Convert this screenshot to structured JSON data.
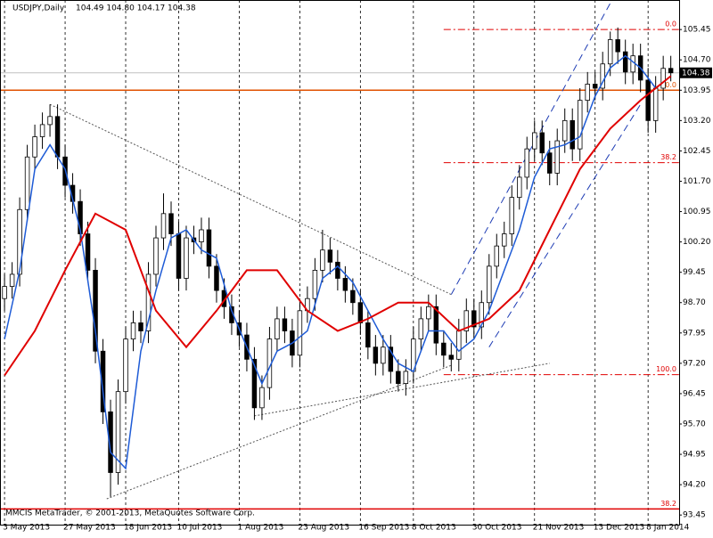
{
  "chart_data": {
    "type": "candlestick",
    "title": "USDJPY,Daily",
    "subtitle": "104.49 104.80 104.17 104.38",
    "footer": "MMCIS MetaTrader, © 2001-2013, MetaQuotes Software Corp.",
    "up_color": "#ffffff",
    "down_color": "#000000",
    "xlim": [
      -0.6,
      89.1
    ],
    "ylim": [
      93.19,
      106.18
    ],
    "yticks": [
      93.45,
      {
        "value": 94.2,
        "label": "94.20"
      },
      94.95,
      {
        "value": 95.7,
        "label": "95.70"
      },
      96.45,
      {
        "value": 97.2,
        "label": "97.20"
      },
      97.95,
      {
        "value": 98.7,
        "label": "98.70"
      },
      99.45,
      {
        "value": 100.2,
        "label": "100.20"
      },
      100.95,
      {
        "value": 101.7,
        "label": "101.70"
      },
      102.45,
      {
        "value": 103.2,
        "label": "103.20"
      },
      103.95,
      {
        "value": 104.7,
        "label": "104.70"
      },
      105.45
    ],
    "xticks": [
      {
        "value": 0,
        "label": "3 May 2013"
      },
      {
        "value": 8,
        "label": "27 May 2013"
      },
      {
        "value": 16,
        "label": "18 Jun 2013"
      },
      {
        "value": 23,
        "label": "10 Jul 2013"
      },
      {
        "value": 31,
        "label": "1 Aug 2013"
      },
      {
        "value": 39,
        "label": "23 Aug 2013"
      },
      {
        "value": 47,
        "label": "16 Sep 2013"
      },
      {
        "value": 54,
        "label": "8 Oct 2013"
      },
      {
        "value": 62,
        "label": "30 Oct 2013"
      },
      {
        "value": 70,
        "label": "21 Nov 2013"
      },
      {
        "value": 78,
        "label": "13 Dec 2013"
      },
      {
        "value": 85,
        "label": "8 Jan 2014"
      }
    ],
    "open": [
      98.8,
      99.1,
      99.4,
      101.0,
      102.3,
      102.8,
      103.1,
      103.3,
      102.3,
      101.6,
      101.2,
      100.4,
      99.5,
      97.5,
      96.0,
      94.5,
      96.5,
      97.8,
      98.2,
      98.0,
      99.4,
      100.3,
      100.9,
      100.4,
      99.3,
      100.3,
      100.2,
      100.5,
      99.6,
      99.0,
      98.6,
      98.2,
      97.9,
      97.3,
      96.1,
      96.6,
      97.8,
      98.3,
      98.0,
      97.4,
      98.5,
      98.8,
      99.5,
      100.0,
      99.7,
      99.3,
      99.0,
      98.7,
      98.2,
      97.6,
      97.2,
      97.6,
      97.0,
      96.7,
      97.0,
      97.8,
      98.3,
      98.6,
      97.7,
      97.4,
      97.3,
      98.0,
      98.5,
      98.1,
      98.7,
      99.6,
      100.1,
      100.4,
      101.3,
      101.8,
      102.5,
      102.9,
      102.4,
      101.9,
      102.7,
      103.2,
      102.5,
      103.7,
      104.1,
      104.0,
      104.6,
      105.2,
      104.9,
      104.4,
      104.8,
      104.2,
      103.2,
      104.0,
      104.49
    ],
    "high": [
      99.4,
      99.7,
      101.3,
      102.6,
      103.1,
      103.4,
      103.6,
      103.6,
      102.6,
      101.9,
      101.5,
      100.7,
      99.8,
      97.8,
      96.3,
      96.8,
      98.1,
      98.5,
      98.5,
      99.7,
      100.6,
      101.4,
      101.2,
      100.7,
      100.6,
      100.6,
      100.8,
      100.8,
      99.9,
      99.3,
      98.9,
      98.5,
      98.2,
      97.6,
      96.9,
      98.1,
      98.6,
      98.6,
      98.3,
      98.8,
      99.1,
      99.8,
      100.5,
      100.3,
      100.0,
      99.6,
      99.3,
      99.0,
      98.5,
      97.9,
      97.9,
      97.9,
      97.3,
      97.3,
      98.1,
      98.6,
      98.9,
      98.9,
      98.0,
      97.7,
      98.3,
      98.8,
      98.8,
      99.0,
      99.9,
      100.4,
      100.7,
      101.6,
      102.1,
      102.8,
      103.2,
      103.2,
      102.7,
      103.0,
      103.5,
      103.5,
      104.0,
      104.4,
      104.4,
      104.9,
      105.4,
      105.5,
      105.2,
      105.1,
      105.1,
      104.5,
      104.3,
      104.8,
      104.8
    ],
    "low": [
      98.5,
      98.8,
      99.1,
      100.7,
      102.0,
      102.5,
      102.8,
      102.0,
      101.3,
      100.9,
      100.1,
      99.2,
      97.2,
      95.7,
      93.9,
      94.2,
      96.2,
      97.5,
      97.7,
      97.7,
      99.1,
      100.0,
      100.1,
      99.0,
      99.0,
      99.9,
      99.9,
      99.3,
      98.7,
      98.3,
      97.9,
      97.6,
      97.0,
      95.8,
      95.8,
      96.3,
      97.5,
      97.7,
      97.1,
      97.1,
      98.2,
      98.5,
      99.2,
      99.4,
      99.0,
      98.7,
      98.4,
      97.9,
      97.3,
      96.9,
      96.9,
      96.7,
      96.5,
      96.4,
      96.7,
      97.5,
      98.0,
      97.4,
      97.1,
      97.0,
      97.0,
      97.7,
      97.8,
      97.8,
      98.4,
      99.3,
      99.8,
      100.1,
      101.0,
      101.5,
      102.2,
      102.1,
      101.6,
      101.6,
      102.4,
      102.2,
      102.2,
      103.4,
      103.7,
      103.7,
      104.3,
      104.6,
      104.1,
      104.1,
      103.9,
      102.9,
      102.9,
      103.7,
      104.17
    ],
    "close": [
      99.1,
      99.4,
      101.0,
      102.3,
      102.8,
      103.1,
      103.3,
      102.3,
      101.6,
      101.2,
      100.4,
      99.5,
      97.5,
      96.0,
      94.5,
      96.5,
      97.8,
      98.2,
      98.0,
      99.4,
      100.3,
      100.9,
      100.4,
      99.3,
      100.3,
      100.2,
      100.5,
      99.6,
      99.0,
      98.6,
      98.2,
      97.9,
      97.3,
      96.1,
      96.6,
      97.8,
      98.3,
      98.0,
      97.4,
      98.5,
      98.8,
      99.5,
      100.0,
      99.7,
      99.3,
      99.0,
      98.7,
      98.2,
      97.6,
      97.2,
      97.6,
      97.0,
      96.7,
      97.0,
      97.8,
      98.3,
      98.6,
      97.7,
      97.4,
      97.3,
      98.0,
      98.5,
      98.1,
      98.7,
      99.6,
      100.1,
      100.4,
      101.3,
      101.8,
      102.5,
      102.9,
      102.4,
      101.9,
      102.7,
      103.2,
      102.5,
      103.7,
      104.1,
      104.0,
      104.6,
      105.2,
      104.9,
      104.4,
      104.8,
      104.2,
      103.2,
      104.0,
      104.49,
      104.38
    ],
    "last_price": {
      "value": 104.38,
      "label": "104.38"
    },
    "lines": [
      {
        "color": "#1e5bd6",
        "width": 1.5,
        "x": [
          0,
          2,
          4,
          6,
          8,
          10,
          12,
          14,
          16,
          18,
          20,
          22,
          24,
          26,
          28,
          30,
          32,
          34,
          36,
          38,
          40,
          42,
          44,
          46,
          48,
          50,
          52,
          54,
          56,
          58,
          60,
          62,
          64,
          66,
          68,
          70,
          72,
          74,
          76,
          78,
          80,
          82,
          84,
          86,
          88
        ],
        "values": [
          97.8,
          99.5,
          102.0,
          102.6,
          102.0,
          100.5,
          98.0,
          95.0,
          94.6,
          97.5,
          99.0,
          100.3,
          100.5,
          100.0,
          99.8,
          98.5,
          97.6,
          96.7,
          97.5,
          97.7,
          98.0,
          99.3,
          99.6,
          99.2,
          98.5,
          97.8,
          97.2,
          97.0,
          98.0,
          98.0,
          97.5,
          97.8,
          98.5,
          99.5,
          100.5,
          101.8,
          102.5,
          102.6,
          102.8,
          103.8,
          104.5,
          104.8,
          104.5,
          104.0,
          104.3
        ]
      },
      {
        "color": "#e00000",
        "width": 2,
        "x": [
          0,
          4,
          8,
          12,
          16,
          20,
          24,
          28,
          32,
          36,
          40,
          44,
          48,
          52,
          56,
          60,
          64,
          68,
          72,
          76,
          80,
          84,
          88
        ],
        "values": [
          96.9,
          98.0,
          99.5,
          100.9,
          100.5,
          98.5,
          97.6,
          98.5,
          99.5,
          99.5,
          98.5,
          98.0,
          98.3,
          98.7,
          98.7,
          98.0,
          98.3,
          99.0,
          100.5,
          102.0,
          103.0,
          103.7,
          104.3
        ]
      }
    ],
    "levels": [
      {
        "value": 105.45,
        "label": "0.0",
        "style": "dashdot",
        "start": 58,
        "color": "#e00000"
      },
      {
        "value": 103.95,
        "label": "0.0",
        "style": "solid",
        "start": -0.6,
        "color": "#e05000"
      },
      {
        "value": 102.16,
        "label": "38.2",
        "style": "dashdot",
        "start": 58,
        "color": "#e00000"
      },
      {
        "value": 96.92,
        "label": "100.0",
        "style": "dashdot",
        "start": 58,
        "color": "#e00000"
      },
      {
        "value": 93.6,
        "label": "38.2",
        "style": "solid",
        "start": -0.6,
        "color": "#e00000"
      }
    ],
    "trendlines": [
      {
        "x": [
          6,
          59
        ],
        "values": [
          103.6,
          98.9
        ],
        "color": "#555555",
        "dash": "2,2"
      },
      {
        "x": [
          13.5,
          59
        ],
        "values": [
          93.85,
          97.15
        ],
        "color": "#555555",
        "dash": "2,2"
      },
      {
        "x": [
          33,
          72
        ],
        "values": [
          95.9,
          97.2
        ],
        "color": "#555555",
        "dash": "2,2"
      },
      {
        "x": [
          59,
          80
        ],
        "values": [
          98.9,
          106.1
        ],
        "color": "#1e3cb4",
        "dash": "8,5"
      },
      {
        "x": [
          64,
          84
        ],
        "values": [
          97.6,
          103.6
        ],
        "color": "#1e3cb4",
        "dash": "8,5"
      }
    ]
  }
}
